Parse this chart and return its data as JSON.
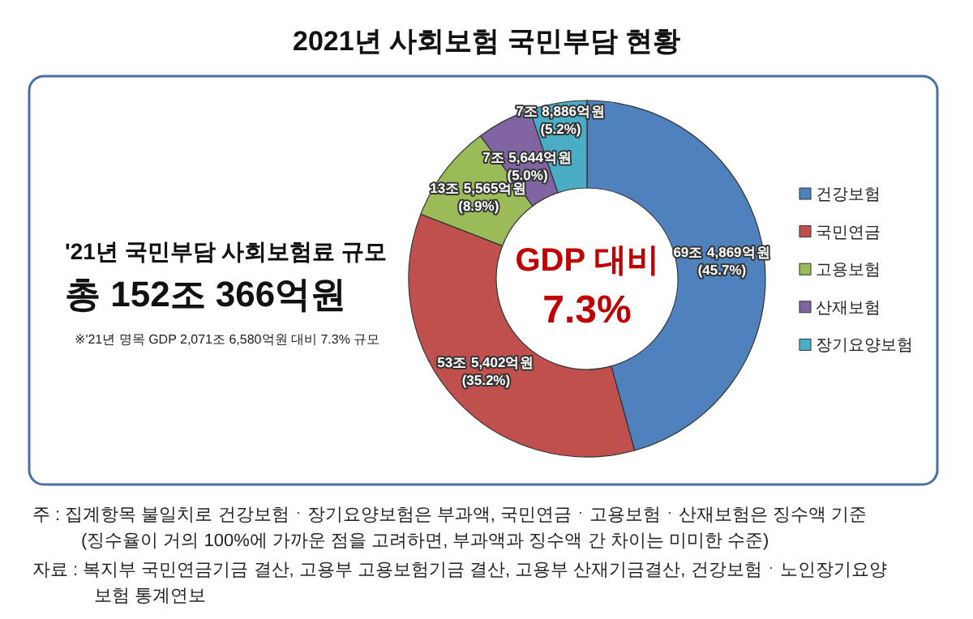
{
  "chart_data": {
    "type": "donut",
    "title": "2021년 사회보험 국민부담 현황",
    "categories": [
      "건강보험",
      "국민연금",
      "고용보험",
      "산재보험",
      "장기요양보험"
    ],
    "values": [
      45.7,
      35.2,
      8.9,
      5.0,
      5.2
    ],
    "colors": [
      "#4f81bd",
      "#c0504d",
      "#9bbb59",
      "#8064a2",
      "#4bacc6"
    ],
    "value_labels": [
      "69조 4,869억원 (45.7%)",
      "53조 5,402억원 (35.2%)",
      "13조 5,565억원 (8.9%)",
      "7조 5,644억원 (5.0%)",
      "7조 8,886억원 (5.2%)"
    ],
    "legend": "right",
    "annotations": [
      "'21년 국민부담 사회보험료 규모",
      "총 152조 366억원",
      "※'21년 명목 GDP 2,071조 6,580억원 대비 7.3% 규모",
      "GDP 대비",
      "7.3%",
      "주 : 집계항목 불일치로 건강보험ㆍ장기요양보험은 부과액, 국민연금ㆍ고용보험ㆍ산재보험은 징수액 기준",
      "(징수율이 거의 100%에 가까운 점을 고려하면, 부과액과 징수액 간 차이는 미미한 수준)",
      "자료 : 복지부 국민연금기금 결산, 고용부 고용보험기금 결산, 고용부 산재기금결산, 건강보험ㆍ노인장기요양",
      "보험 통계연보"
    ]
  }
}
